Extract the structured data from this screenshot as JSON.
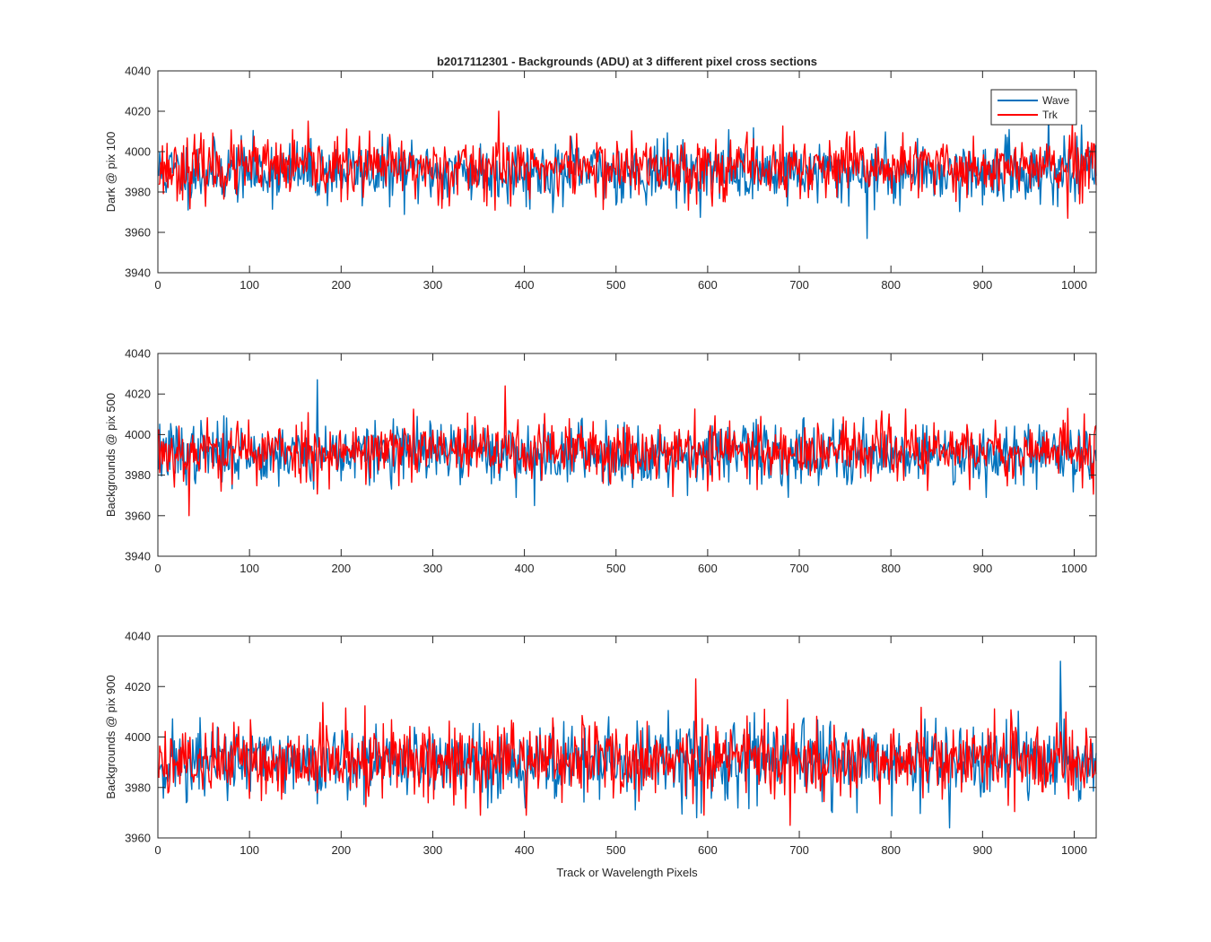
{
  "figure_title": "b2017112301 - Backgrounds (ADU) at 3 different pixel cross sections",
  "xlabel": "Track or Wavelength Pixels",
  "legend": {
    "entries": [
      "Wave",
      "Trk"
    ],
    "placement": "top-right"
  },
  "colors": {
    "wave": "#0072BD",
    "trk": "#FF0000",
    "axis": "#262626"
  },
  "chart_data": [
    {
      "type": "line",
      "title": "b2017112301 - Backgrounds (ADU) at 3 different pixel cross sections",
      "ylabel": "Dark @ pix 100",
      "xlabel": "",
      "xlim": [
        0,
        1024
      ],
      "ylim": [
        3940,
        4040
      ],
      "x_ticks": [
        0,
        100,
        200,
        300,
        400,
        500,
        600,
        700,
        800,
        900,
        1000
      ],
      "y_ticks": [
        3940,
        3960,
        3980,
        4000,
        4020,
        4040
      ],
      "x_tick_labels": [
        "0",
        "100",
        "200",
        "300",
        "400",
        "500",
        "600",
        "700",
        "800",
        "900",
        "1000"
      ],
      "y_tick_labels": [
        "3940",
        "3960",
        "3980",
        "4000",
        "4020",
        "4040"
      ],
      "series": [
        {
          "name": "Wave",
          "mean": 3990,
          "spread": 7.5,
          "seed": 11,
          "max": 4020,
          "min": 3957
        },
        {
          "name": "Trk",
          "mean": 3992,
          "spread": 7.5,
          "seed": 23,
          "max": 4020,
          "min": 3967
        }
      ]
    },
    {
      "type": "line",
      "title": "",
      "ylabel": "Backgrounds @ pix 500",
      "xlabel": "",
      "xlim": [
        0,
        1024
      ],
      "ylim": [
        3940,
        4040
      ],
      "x_ticks": [
        0,
        100,
        200,
        300,
        400,
        500,
        600,
        700,
        800,
        900,
        1000
      ],
      "y_ticks": [
        3940,
        3960,
        3980,
        4000,
        4020,
        4040
      ],
      "x_tick_labels": [
        "0",
        "100",
        "200",
        "300",
        "400",
        "500",
        "600",
        "700",
        "800",
        "900",
        "1000"
      ],
      "y_tick_labels": [
        "3940",
        "3960",
        "3980",
        "4000",
        "4020",
        "4040"
      ],
      "series": [
        {
          "name": "Wave",
          "mean": 3991,
          "spread": 7.5,
          "seed": 37,
          "max": 4027,
          "min": 3965
        },
        {
          "name": "Trk",
          "mean": 3992,
          "spread": 7.5,
          "seed": 53,
          "max": 4024,
          "min": 3960
        }
      ]
    },
    {
      "type": "line",
      "title": "",
      "ylabel": "Backgrounds @ pix 900",
      "xlabel": "Track or Wavelength Pixels",
      "xlim": [
        0,
        1024
      ],
      "ylim": [
        3960,
        4040
      ],
      "x_ticks": [
        0,
        100,
        200,
        300,
        400,
        500,
        600,
        700,
        800,
        900,
        1000
      ],
      "y_ticks": [
        3960,
        3980,
        4000,
        4020,
        4040
      ],
      "x_tick_labels": [
        "0",
        "100",
        "200",
        "300",
        "400",
        "500",
        "600",
        "700",
        "800",
        "900",
        "1000"
      ],
      "y_tick_labels": [
        "3960",
        "3980",
        "4000",
        "4020",
        "4040"
      ],
      "series": [
        {
          "name": "Wave",
          "mean": 3990,
          "spread": 7.5,
          "seed": 71,
          "max": 4030,
          "min": 3964
        },
        {
          "name": "Trk",
          "mean": 3991,
          "spread": 7.5,
          "seed": 89,
          "max": 4023,
          "min": 3965
        }
      ]
    }
  ]
}
